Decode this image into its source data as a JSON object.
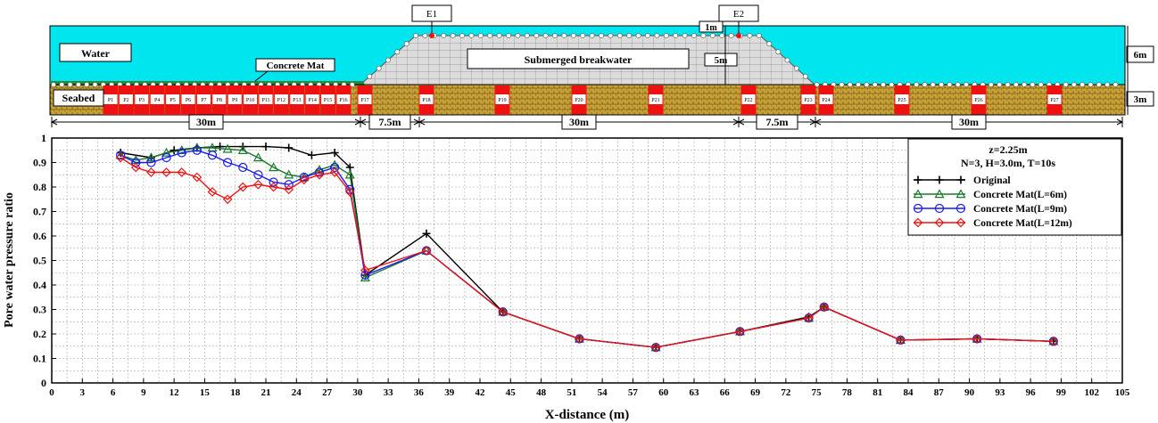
{
  "diagram": {
    "labels": {
      "water": "Water",
      "concrete_mat": "Concrete Mat",
      "submerged_breakwater": "Submerged breakwater",
      "seabed": "Seabed",
      "e1": "E1",
      "e2": "E2",
      "dim_1m": "1m",
      "dim_5m": "5m",
      "dim_6m": "6m",
      "dim_3m": "3m"
    },
    "colors": {
      "water": "#00e5ee",
      "seabed": "#c8a236",
      "mat": "#2a8a3a",
      "breakwater": "#d9d9d9",
      "probe": "#ee1111"
    },
    "probes": [
      "P1",
      "P2",
      "P3",
      "P4",
      "P5",
      "P6",
      "P7",
      "P8",
      "P9",
      "P10",
      "P11",
      "P12",
      "P13",
      "P14",
      "P15",
      "P16",
      "P17",
      "P18",
      "P19",
      "P20",
      "P21",
      "P22",
      "P23",
      "P24",
      "P25",
      "P26",
      "P27"
    ],
    "segments": [
      {
        "label": "30m"
      },
      {
        "label": "7.5m"
      },
      {
        "label": "30m"
      },
      {
        "label": "7.5m"
      },
      {
        "label": "30m"
      }
    ]
  },
  "chart_data": {
    "type": "line",
    "xlabel": "X-distance (m)",
    "ylabel": "Pore water pressure ratio",
    "xlim": [
      0,
      105
    ],
    "ylim": [
      0,
      1
    ],
    "xticks": [
      0,
      3,
      6,
      9,
      12,
      15,
      18,
      21,
      24,
      27,
      30,
      33,
      36,
      39,
      42,
      45,
      48,
      51,
      54,
      57,
      60,
      63,
      66,
      69,
      72,
      75,
      78,
      81,
      84,
      87,
      90,
      93,
      96,
      99,
      102,
      105
    ],
    "yticks": [
      0,
      0.1,
      0.2,
      0.3,
      0.4,
      0.5,
      0.6,
      0.7,
      0.8,
      0.9,
      1
    ],
    "grid": true,
    "legend_position": "top-right",
    "legend_title": [
      "z=2.25m",
      "N=3, H=3.0m, T=10s"
    ],
    "series": [
      {
        "name": "Original",
        "color": "#000000",
        "marker": "plus",
        "x": [
          6.75,
          9.75,
          12.0,
          14.25,
          16.5,
          18.75,
          21.0,
          23.25,
          25.5,
          27.75,
          29.25,
          30.75,
          36.75,
          44.25,
          51.75,
          59.25,
          67.5,
          74.25,
          75.75,
          83.25,
          90.75,
          98.25
        ],
        "y": [
          0.94,
          0.92,
          0.95,
          0.96,
          0.965,
          0.965,
          0.965,
          0.96,
          0.93,
          0.94,
          0.88,
          0.44,
          0.61,
          0.29,
          0.18,
          0.145,
          0.21,
          0.27,
          0.31,
          0.175,
          0.18,
          0.17
        ]
      },
      {
        "name": "Concrete Mat(L=6m)",
        "color": "#1a7a2a",
        "marker": "triangle",
        "x": [
          6.75,
          8.25,
          9.75,
          11.25,
          12.75,
          14.25,
          15.75,
          17.25,
          18.75,
          20.25,
          21.75,
          23.25,
          24.75,
          26.25,
          27.75,
          29.25,
          30.75,
          36.75,
          44.25,
          51.75,
          59.25,
          67.5,
          74.25,
          75.75,
          83.25,
          90.75,
          98.25
        ],
        "y": [
          0.93,
          0.91,
          0.92,
          0.94,
          0.95,
          0.96,
          0.96,
          0.955,
          0.95,
          0.92,
          0.88,
          0.85,
          0.84,
          0.87,
          0.89,
          0.85,
          0.43,
          0.54,
          0.29,
          0.18,
          0.145,
          0.21,
          0.265,
          0.31,
          0.175,
          0.18,
          0.17
        ]
      },
      {
        "name": "Concrete Mat(L=9m)",
        "color": "#1a1aee",
        "marker": "circle",
        "x": [
          6.75,
          8.25,
          9.75,
          11.25,
          12.75,
          14.25,
          15.75,
          17.25,
          18.75,
          20.25,
          21.75,
          23.25,
          24.75,
          26.25,
          27.75,
          29.25,
          30.75,
          36.75,
          44.25,
          51.75,
          59.25,
          67.5,
          74.25,
          75.75,
          83.25,
          90.75,
          98.25
        ],
        "y": [
          0.93,
          0.9,
          0.9,
          0.92,
          0.94,
          0.95,
          0.93,
          0.9,
          0.88,
          0.85,
          0.82,
          0.81,
          0.84,
          0.86,
          0.88,
          0.79,
          0.44,
          0.54,
          0.29,
          0.18,
          0.145,
          0.21,
          0.265,
          0.31,
          0.175,
          0.18,
          0.17
        ]
      },
      {
        "name": "Concrete Mat(L=12m)",
        "color": "#ee1111",
        "marker": "diamond",
        "x": [
          6.75,
          8.25,
          9.75,
          11.25,
          12.75,
          14.25,
          15.75,
          17.25,
          18.75,
          20.25,
          21.75,
          23.25,
          24.75,
          26.25,
          27.75,
          29.25,
          30.75,
          36.75,
          44.25,
          51.75,
          59.25,
          67.5,
          74.25,
          75.75,
          83.25,
          90.75,
          98.25
        ],
        "y": [
          0.92,
          0.88,
          0.86,
          0.86,
          0.86,
          0.84,
          0.78,
          0.75,
          0.8,
          0.81,
          0.8,
          0.79,
          0.83,
          0.85,
          0.86,
          0.78,
          0.46,
          0.54,
          0.29,
          0.18,
          0.145,
          0.21,
          0.265,
          0.31,
          0.175,
          0.18,
          0.17
        ]
      }
    ]
  }
}
